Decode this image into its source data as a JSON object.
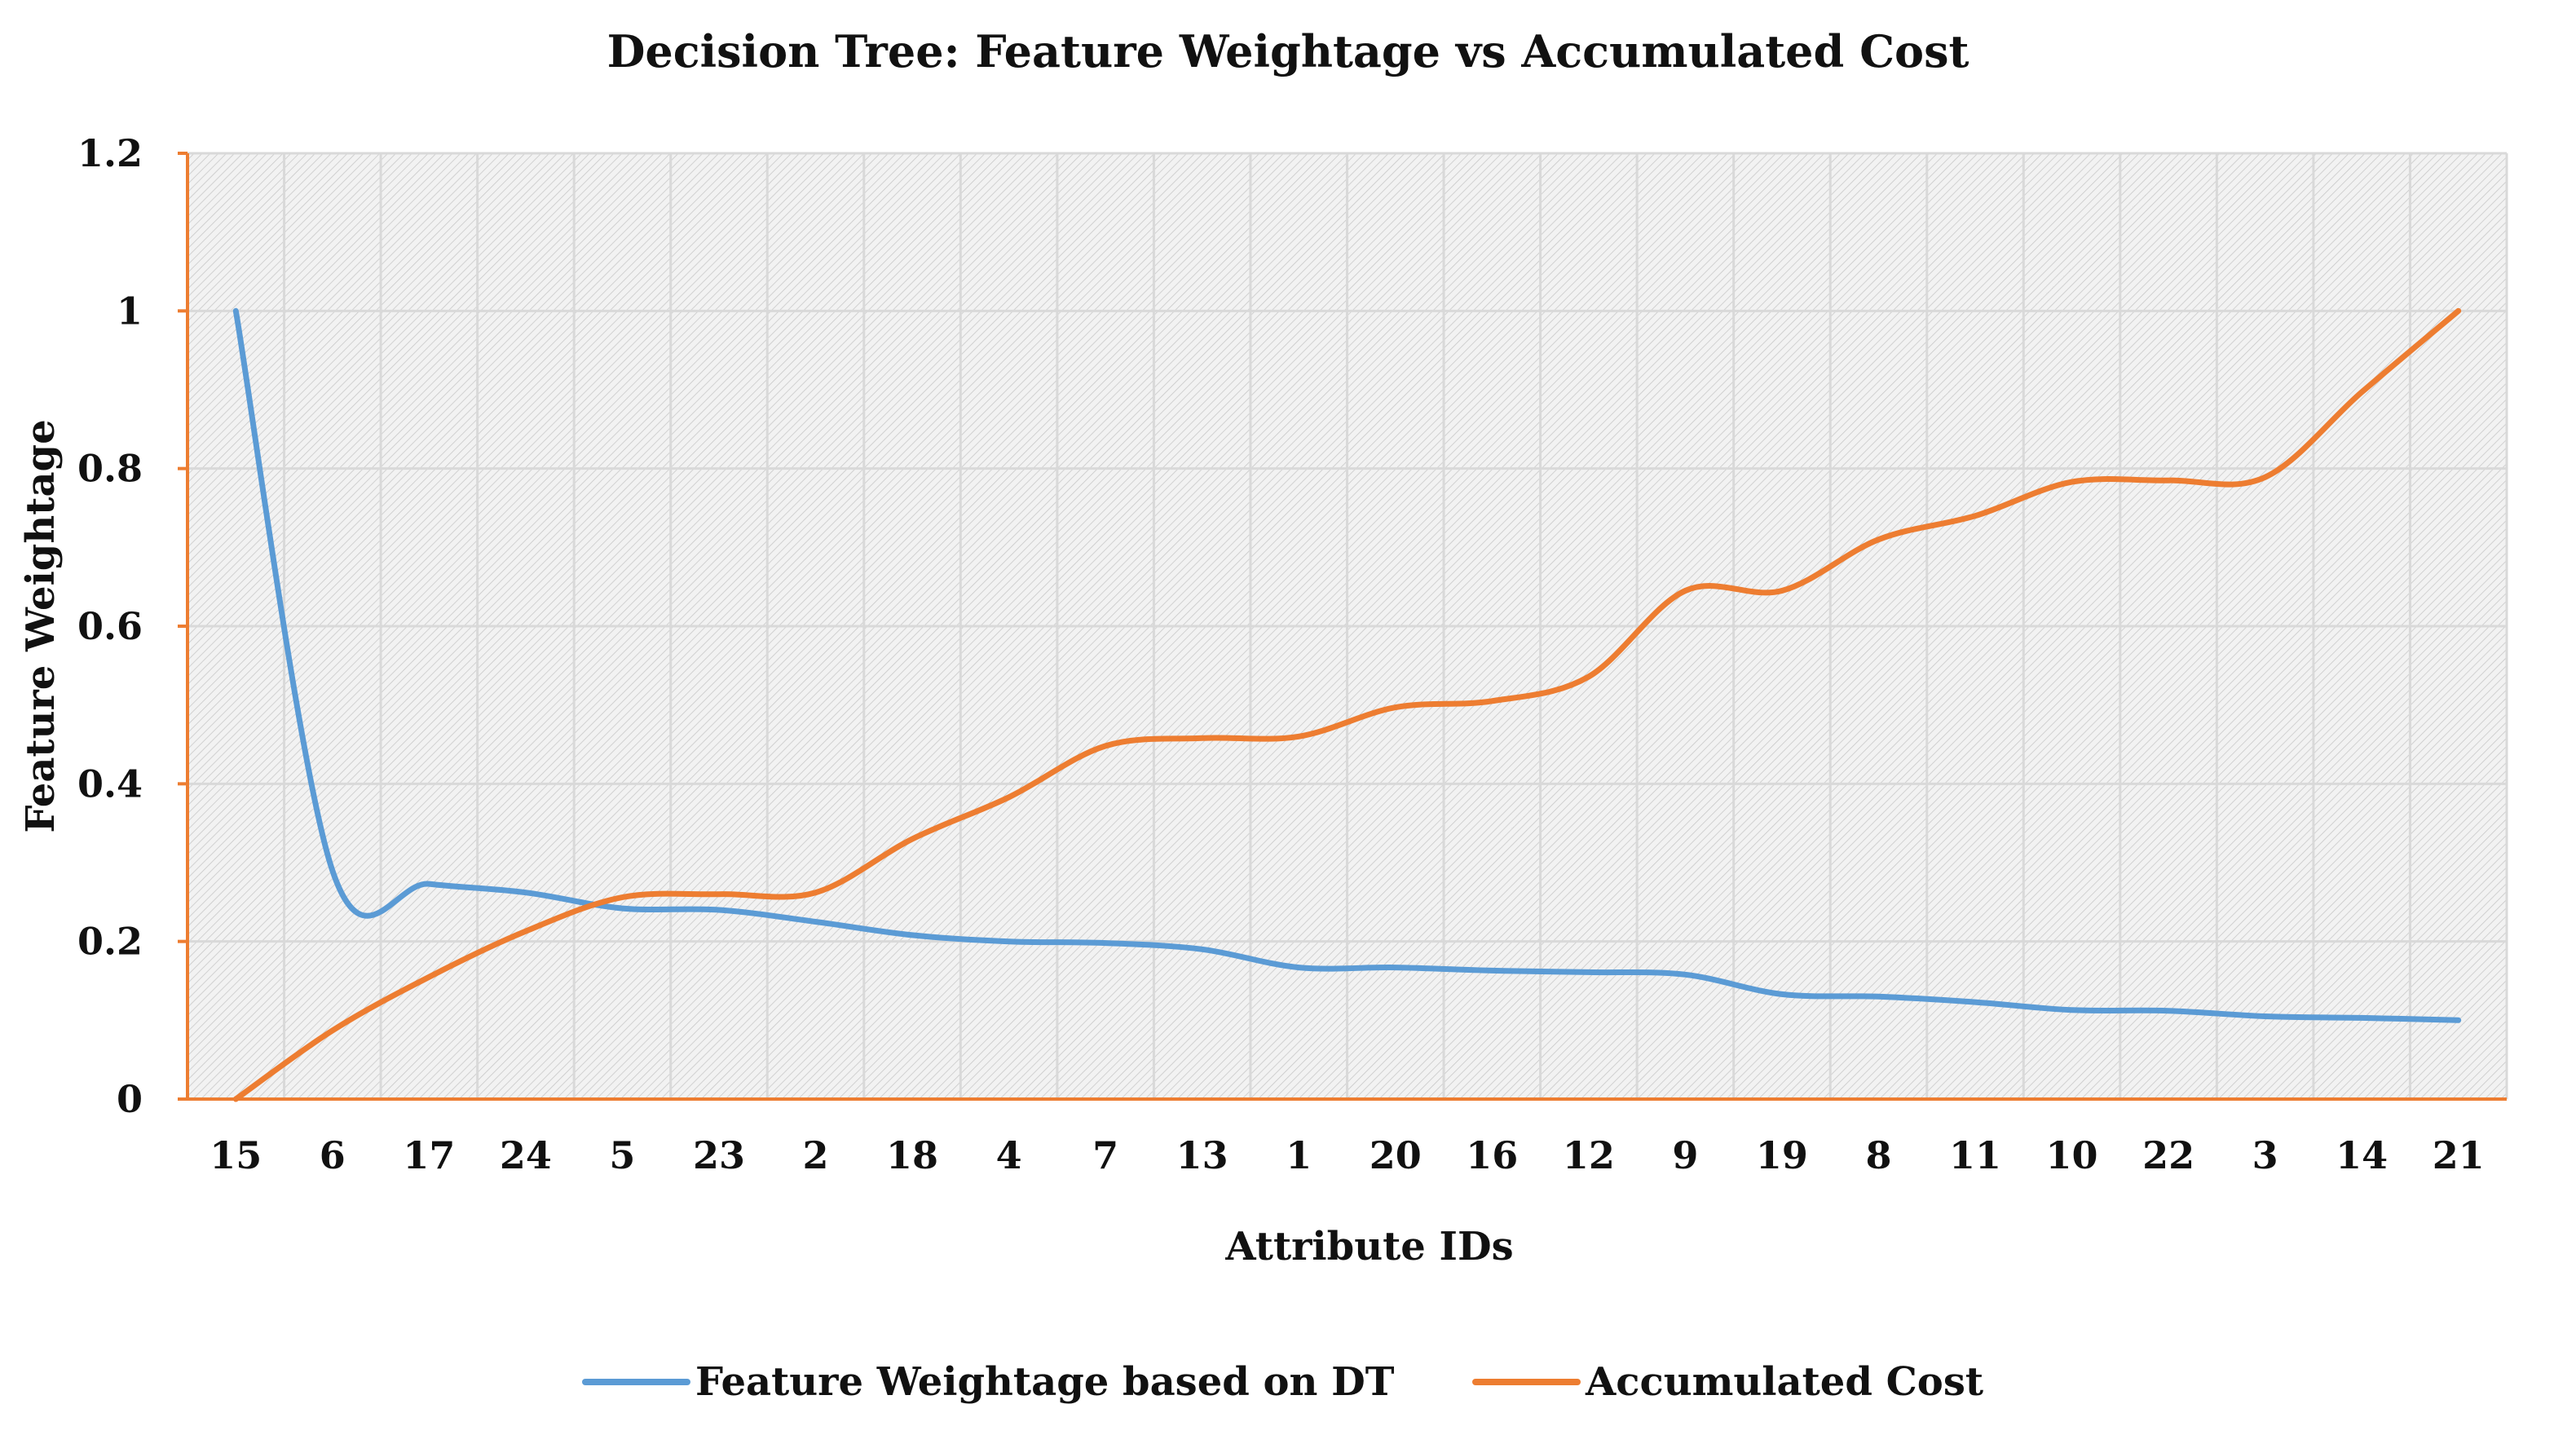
{
  "chart_data": {
    "type": "line",
    "title": "Decision Tree: Feature Weightage vs Accumulated Cost",
    "xlabel": "Attribute IDs",
    "ylabel": "Feature Weightage",
    "ylim": [
      0,
      1.2
    ],
    "yticks": [
      "0",
      "0.2",
      "0.4",
      "0.6",
      "0.8",
      "1",
      "1.2"
    ],
    "grid": true,
    "legend_position": "bottom-center",
    "categories": [
      "15",
      "6",
      "17",
      "24",
      "5",
      "23",
      "2",
      "18",
      "4",
      "7",
      "13",
      "1",
      "20",
      "16",
      "12",
      "9",
      "19",
      "8",
      "11",
      "10",
      "22",
      "3",
      "14",
      "21"
    ],
    "series": [
      {
        "name": "Feature Weightage based on DT",
        "color": "#5B9BD5",
        "values": [
          1.0,
          0.29,
          0.273,
          0.262,
          0.242,
          0.24,
          0.225,
          0.208,
          0.2,
          0.198,
          0.19,
          0.167,
          0.167,
          0.163,
          0.161,
          0.158,
          0.133,
          0.13,
          0.123,
          0.113,
          0.112,
          0.105,
          0.103,
          0.1
        ]
      },
      {
        "name": "Accumulated Cost",
        "color": "#ED7D31",
        "values": [
          0.0,
          0.087,
          0.155,
          0.213,
          0.256,
          0.26,
          0.262,
          0.33,
          0.383,
          0.448,
          0.458,
          0.46,
          0.497,
          0.505,
          0.536,
          0.645,
          0.645,
          0.71,
          0.74,
          0.783,
          0.785,
          0.789,
          0.897,
          1.0
        ]
      }
    ]
  }
}
